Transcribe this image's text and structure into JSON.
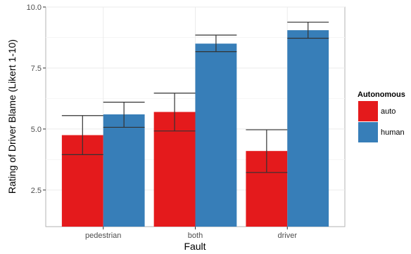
{
  "chart_data": {
    "type": "bar",
    "title": "",
    "xlabel": "Fault",
    "ylabel": "Rating of Driver Blame (Likert 1-10)",
    "categories": [
      "pedestrian",
      "both",
      "driver"
    ],
    "ylim": [
      1,
      10
    ],
    "yticks": [
      "2.5",
      "5.0",
      "7.5",
      "10.0"
    ],
    "grid": true,
    "legend": {
      "title": "Autonomous",
      "position": "right",
      "entries": [
        "auto",
        "human"
      ]
    },
    "series": [
      {
        "name": "auto",
        "color": "#e41a1c",
        "values": [
          4.75,
          5.7,
          4.1
        ],
        "error_low": [
          3.95,
          4.92,
          3.22
        ],
        "error_high": [
          5.55,
          6.47,
          4.97
        ]
      },
      {
        "name": "human",
        "color": "#377eb8",
        "values": [
          5.6,
          8.5,
          9.05
        ],
        "error_low": [
          5.07,
          8.17,
          8.72
        ],
        "error_high": [
          6.1,
          8.85,
          9.38
        ]
      }
    ]
  }
}
